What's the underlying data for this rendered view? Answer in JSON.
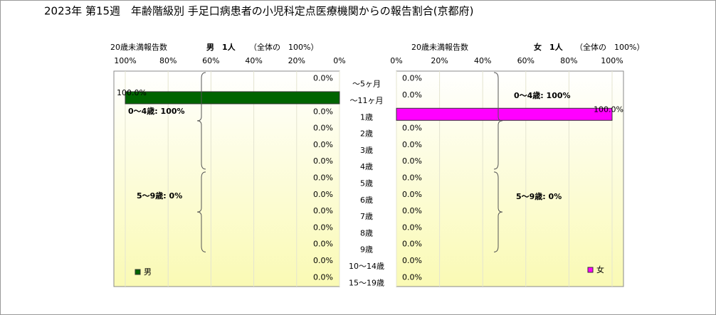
{
  "title": "2023年 第15週　年齢階級別 手足口病患者の小児科定点医療機関からの報告割合(京都府)",
  "chart_data": [
    {
      "type": "bar",
      "orientation": "horizontal",
      "count_label": "20歳未満報告数",
      "subtitle": "男　1人",
      "share_label": "（全体の　100%）",
      "categories": [
        "～5ヶ月",
        "～11ヶ月",
        "1歳",
        "2歳",
        "3歳",
        "4歳",
        "5歳",
        "6歳",
        "7歳",
        "8歳",
        "9歳",
        "10～14歳",
        "15～19歳"
      ],
      "series": [
        {
          "name": "男",
          "color": "#006400",
          "values": [
            0,
            100,
            0,
            0,
            0,
            0,
            0,
            0,
            0,
            0,
            0,
            0,
            0
          ],
          "value_labels": [
            "0.0%",
            "100.0%",
            "0.0%",
            "0.0%",
            "0.0%",
            "0.0%",
            "0.0%",
            "0.0%",
            "0.0%",
            "0.0%",
            "0.0%",
            "0.0%",
            "0.0%"
          ]
        }
      ],
      "xlim": [
        100,
        0
      ],
      "xticks": [
        {
          "value": 100,
          "label": "100%"
        },
        {
          "value": 80,
          "label": "80%"
        },
        {
          "value": 60,
          "label": "60%"
        },
        {
          "value": 40,
          "label": "40%"
        },
        {
          "value": 20,
          "label": "20%"
        },
        {
          "value": 0,
          "label": "0%"
        }
      ],
      "annotations": [
        "0～4歳: 100%",
        "5～9歳: 0%"
      ],
      "grid": true,
      "legend": "bottom-left"
    },
    {
      "type": "bar",
      "orientation": "horizontal",
      "count_label": "20歳未満報告数",
      "subtitle": "女　1人",
      "share_label": "（全体の　100%）",
      "series": [
        {
          "name": "女",
          "color": "#ff00ff",
          "values": [
            0,
            0,
            100,
            0,
            0,
            0,
            0,
            0,
            0,
            0,
            0,
            0,
            0
          ],
          "value_labels": [
            "0.0%",
            "0.0%",
            "100.0%",
            "0.0%",
            "0.0%",
            "0.0%",
            "0.0%",
            "0.0%",
            "0.0%",
            "0.0%",
            "0.0%",
            "0.0%",
            "0.0%"
          ]
        }
      ],
      "xlim": [
        0,
        100
      ],
      "xticks": [
        {
          "value": 0,
          "label": "0%"
        },
        {
          "value": 20,
          "label": "20%"
        },
        {
          "value": 40,
          "label": "40%"
        },
        {
          "value": 60,
          "label": "60%"
        },
        {
          "value": 80,
          "label": "80%"
        },
        {
          "value": 100,
          "label": "100%"
        }
      ],
      "annotations": [
        "0～4歳: 100%",
        "5～9歳: 0%"
      ],
      "grid": true,
      "legend": "bottom-right"
    }
  ]
}
